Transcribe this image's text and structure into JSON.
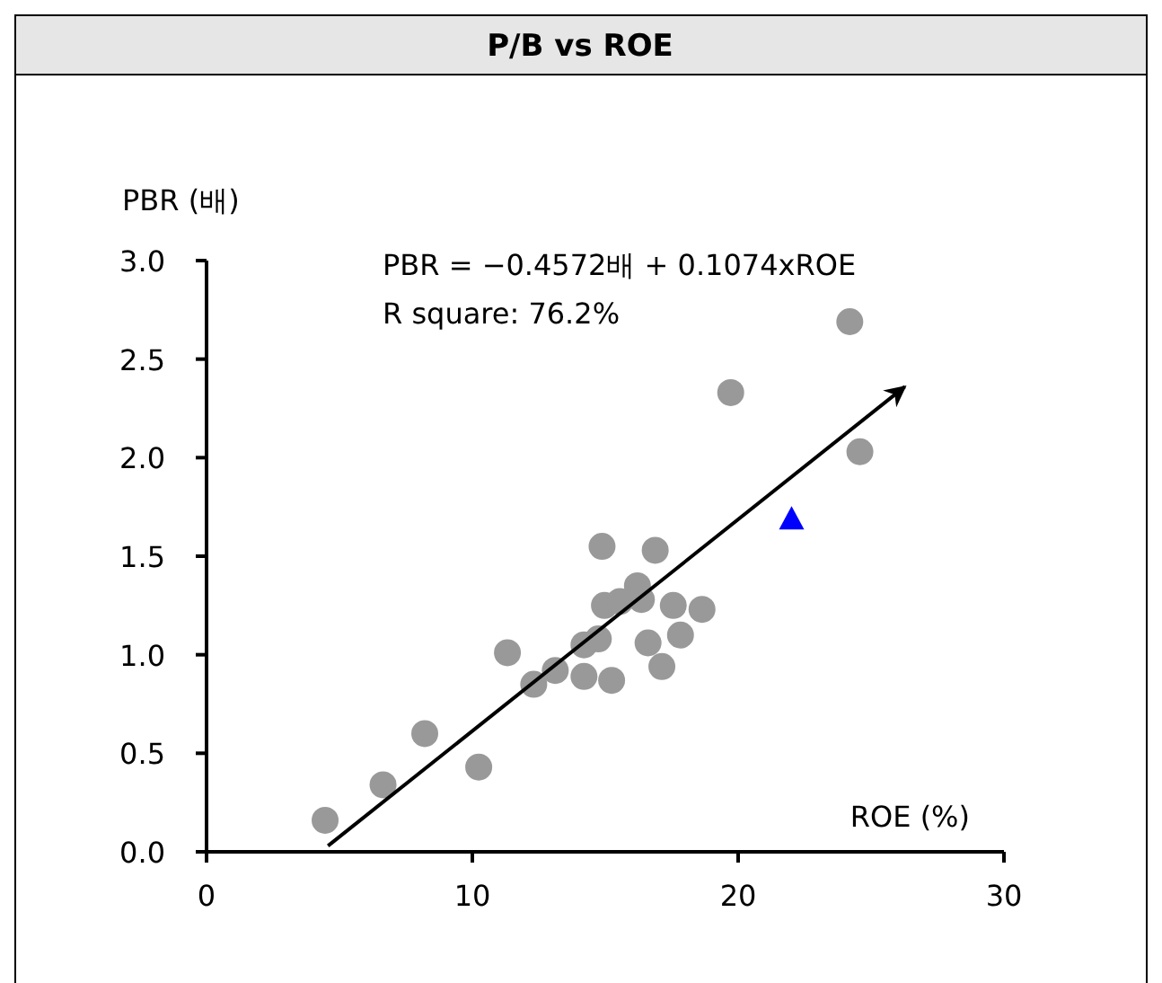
{
  "chart_data": {
    "type": "scatter",
    "title": "P/B vs ROE",
    "xlabel": "ROE (%)",
    "ylabel": "PBR (배)",
    "annotations": [
      "PBR = −0.4572배 + 0.1074xROE",
      "R square: 76.2%"
    ],
    "xlim": [
      0,
      30
    ],
    "xticks": [
      0,
      10,
      20,
      30
    ],
    "ylim": [
      0,
      3
    ],
    "yticks": [
      {
        "value": 0,
        "label": "0.0"
      },
      {
        "value": 0.5,
        "label": "0.5"
      },
      {
        "value": 1,
        "label": "1.0"
      },
      {
        "value": 1.5,
        "label": "1.5"
      },
      {
        "value": 2,
        "label": "2.0"
      },
      {
        "value": 2.5,
        "label": "2.5"
      },
      {
        "value": 3,
        "label": "3.0"
      }
    ],
    "series": [
      {
        "type": "scatter",
        "color": "#999999",
        "marker": "circle",
        "x": [
          4.46,
          6.64,
          8.21,
          10.24,
          11.32,
          12.31,
          13.12,
          14.2,
          14.2,
          14.74,
          14.88,
          14.97,
          15.24,
          15.55,
          16.21,
          16.36,
          16.88,
          16.61,
          17.13,
          17.56,
          17.83,
          18.64,
          19.72,
          24.2,
          24.58
        ],
        "values": [
          0.16,
          0.34,
          0.6,
          0.43,
          1.01,
          0.85,
          0.92,
          0.89,
          1.05,
          1.08,
          1.55,
          1.25,
          0.87,
          1.27,
          1.35,
          1.28,
          1.53,
          1.06,
          0.94,
          1.25,
          1.1,
          1.23,
          2.33,
          2.69,
          2.03
        ]
      },
      {
        "type": "scatter",
        "color": "#0000ff",
        "marker": "triangle",
        "x": [
          22.01
        ],
        "values": [
          1.69
        ]
      },
      {
        "type": "line",
        "color": "#000000",
        "marker": "none",
        "line_style": "solid",
        "x": [
          4.57,
          26.27
        ],
        "values": [
          0.03,
          2.36
        ]
      }
    ]
  }
}
